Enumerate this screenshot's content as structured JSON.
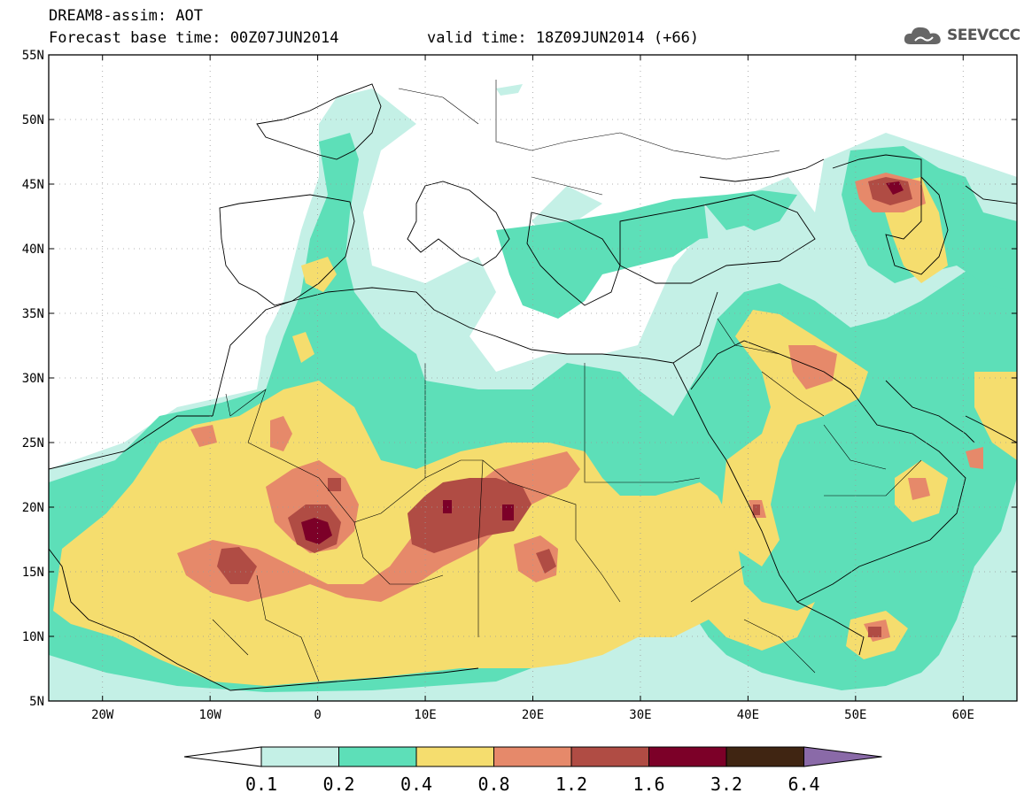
{
  "header": {
    "title": "DREAM8-assim: AOT",
    "forecast_base": "Forecast base time: 00Z07JUN2014",
    "valid_time": "valid time: 18Z09JUN2014 (+66)"
  },
  "brand": {
    "name": "SEEVCCC",
    "icon": "cloud-logo-icon"
  },
  "map": {
    "lon_range": [
      -25,
      65
    ],
    "lat_range": [
      5,
      55
    ],
    "lon_ticks": [
      {
        "value": -20,
        "label": "20W"
      },
      {
        "value": -10,
        "label": "10W"
      },
      {
        "value": 0,
        "label": "0"
      },
      {
        "value": 10,
        "label": "10E"
      },
      {
        "value": 20,
        "label": "20E"
      },
      {
        "value": 30,
        "label": "30E"
      },
      {
        "value": 40,
        "label": "40E"
      },
      {
        "value": 50,
        "label": "50E"
      },
      {
        "value": 60,
        "label": "60E"
      }
    ],
    "lat_ticks": [
      {
        "value": 55,
        "label": "55N"
      },
      {
        "value": 50,
        "label": "50N"
      },
      {
        "value": 45,
        "label": "45N"
      },
      {
        "value": 40,
        "label": "40N"
      },
      {
        "value": 35,
        "label": "35N"
      },
      {
        "value": 30,
        "label": "30N"
      },
      {
        "value": 25,
        "label": "25N"
      },
      {
        "value": 20,
        "label": "20N"
      },
      {
        "value": 15,
        "label": "15N"
      },
      {
        "value": 10,
        "label": "10N"
      },
      {
        "value": 5,
        "label": "5N"
      }
    ],
    "grid": "dotted"
  },
  "colorbar": {
    "levels": [
      "0.1",
      "0.2",
      "0.4",
      "0.8",
      "1.2",
      "1.6",
      "3.2",
      "6.4"
    ],
    "under_color": "#ffffff",
    "colors": [
      "#c4f0e6",
      "#5ddfb8",
      "#f5dd6e",
      "#e6896a",
      "#b04c44",
      "#7c0028",
      "#402512"
    ],
    "over_color": "#8a6aa8"
  },
  "chart_data": {
    "type": "heatmap",
    "title": "DREAM8-assim: AOT",
    "variable": "AOT",
    "x_axis": "longitude",
    "y_axis": "latitude",
    "xlim": [
      -25,
      65
    ],
    "ylim": [
      5,
      55
    ],
    "hotspots": [
      {
        "lon": 0,
        "lat": 18.5,
        "max_class": "1.6-3.2"
      },
      {
        "lon": 12,
        "lat": 20,
        "max_class": "1.6-3.2"
      },
      {
        "lon": 18,
        "lat": 19.8,
        "max_class": "1.6-3.2"
      },
      {
        "lon": 53.5,
        "lat": 44.5,
        "max_class": "1.6-3.2"
      },
      {
        "lon": 51,
        "lat": 10.5,
        "max_class": "1.2-1.6"
      }
    ]
  }
}
